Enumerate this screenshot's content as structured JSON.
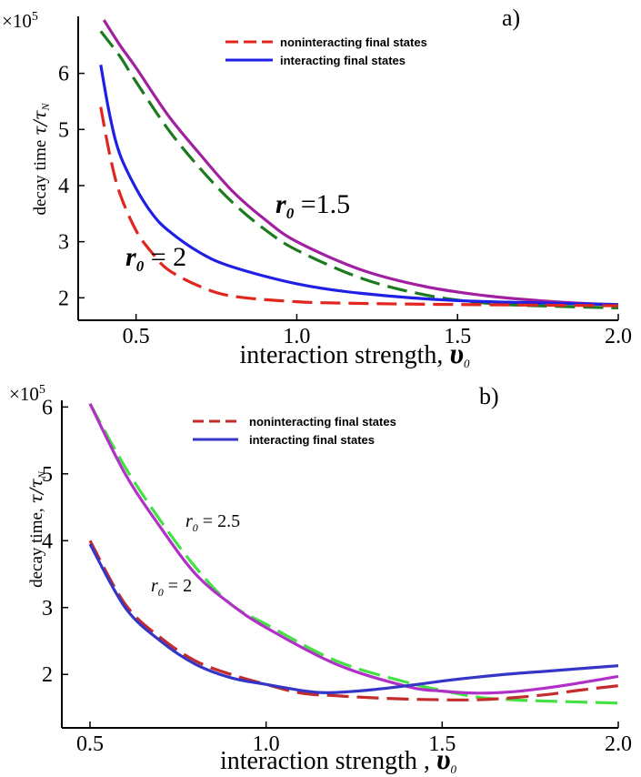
{
  "chart_data": [
    {
      "panel_label": "a)",
      "type": "line",
      "xlabel": "interaction strength, ",
      "xlabel_symbol": "υ",
      "xlabel_sub": "0",
      "ylabel": "decay time ",
      "ylabel_math": "τ/τ",
      "ylabel_sub": "N",
      "y_multiplier": "×10",
      "y_multiplier_exp": "5",
      "xlim": [
        0.32,
        2.0
      ],
      "ylim": [
        1.6,
        6.95
      ],
      "xticks": [
        "0.5",
        "1.0",
        "1.5",
        "2.0"
      ],
      "yticks": [
        "2",
        "3",
        "4",
        "5",
        "6"
      ],
      "legend": {
        "placement": "top-center",
        "entries": [
          {
            "label": "noninteracting final states",
            "color": "#e0261f",
            "dash": "dashed"
          },
          {
            "label": "interacting final states",
            "color": "#1f1fe6",
            "dash": "solid"
          }
        ]
      },
      "annotations": [
        {
          "r": "r",
          "sub": "0",
          "text": " =1.5"
        },
        {
          "r": "r",
          "sub": "0",
          "text": " = 2"
        }
      ],
      "series": [
        {
          "color": "#a020a0",
          "dash": "solid",
          "x": [
            0.4,
            0.45,
            0.5,
            0.6,
            0.7,
            0.8,
            0.9,
            1.0,
            1.2,
            1.4,
            1.6,
            1.8,
            2.0
          ],
          "y": [
            6.95,
            6.5,
            6.1,
            5.25,
            4.55,
            3.9,
            3.4,
            3.0,
            2.5,
            2.2,
            2.03,
            1.93,
            1.87
          ]
        },
        {
          "color": "#1e7a1e",
          "dash": "dashed",
          "x": [
            0.39,
            0.45,
            0.5,
            0.6,
            0.7,
            0.8,
            0.9,
            1.0,
            1.2,
            1.4,
            1.6,
            1.8,
            2.0
          ],
          "y": [
            6.75,
            6.3,
            5.85,
            5.0,
            4.3,
            3.7,
            3.22,
            2.85,
            2.35,
            2.05,
            1.9,
            1.85,
            1.82
          ]
        },
        {
          "color": "#1f1fe6",
          "dash": "solid",
          "x": [
            0.39,
            0.42,
            0.45,
            0.5,
            0.55,
            0.6,
            0.7,
            0.8,
            1.0,
            1.2,
            1.5,
            2.0
          ],
          "y": [
            6.15,
            5.2,
            4.55,
            3.95,
            3.5,
            3.2,
            2.8,
            2.55,
            2.25,
            2.08,
            1.95,
            1.88
          ]
        },
        {
          "color": "#e0261f",
          "dash": "dashed",
          "x": [
            0.39,
            0.42,
            0.45,
            0.5,
            0.55,
            0.6,
            0.7,
            0.8,
            1.0,
            1.2,
            1.5,
            2.0
          ],
          "y": [
            5.4,
            4.5,
            3.85,
            3.2,
            2.8,
            2.5,
            2.2,
            2.03,
            1.93,
            1.9,
            1.88,
            1.86
          ]
        }
      ]
    },
    {
      "panel_label": "b)",
      "type": "line",
      "xlabel": "interaction strength , ",
      "xlabel_symbol": "υ",
      "xlabel_sub": "0",
      "ylabel": "decay time, ",
      "ylabel_math": "τ/τ",
      "ylabel_sub": "N",
      "y_multiplier": "×10",
      "y_multiplier_exp": "5",
      "xlim": [
        0.42,
        2.0
      ],
      "ylim": [
        1.2,
        6.1
      ],
      "xticks": [
        "0.5",
        "1.0",
        "1.5",
        "2.0"
      ],
      "yticks": [
        "2",
        "3",
        "4",
        "5",
        "6"
      ],
      "legend": {
        "placement": "top-center",
        "entries": [
          {
            "label": "noninteracting final states",
            "color": "#c42b2b",
            "dash": "dashed"
          },
          {
            "label": "interacting final states",
            "color": "#3535c8",
            "dash": "solid"
          }
        ]
      },
      "annotations": [
        {
          "r": "r",
          "sub": "0",
          "text": " = 2.5"
        },
        {
          "r": "r",
          "sub": "0",
          "text": " = 2"
        }
      ],
      "series": [
        {
          "color": "#44e044",
          "dash": "dashed",
          "x": [
            0.5,
            0.6,
            0.7,
            0.8,
            0.9,
            1.0,
            1.2,
            1.4,
            1.5,
            1.6,
            1.7,
            1.8,
            2.0
          ],
          "y": [
            6.05,
            5.1,
            4.3,
            3.6,
            3.05,
            2.75,
            2.2,
            1.88,
            1.76,
            1.66,
            1.62,
            1.6,
            1.57
          ]
        },
        {
          "color": "#b030c8",
          "dash": "solid",
          "x": [
            0.5,
            0.6,
            0.7,
            0.8,
            0.9,
            1.0,
            1.2,
            1.4,
            1.5,
            1.6,
            1.7,
            1.8,
            1.9,
            2.0
          ],
          "y": [
            6.05,
            5.0,
            4.2,
            3.5,
            3.05,
            2.7,
            2.15,
            1.82,
            1.75,
            1.72,
            1.74,
            1.8,
            1.88,
            1.97
          ]
        },
        {
          "color": "#c42b2b",
          "dash": "dashed",
          "x": [
            0.5,
            0.6,
            0.7,
            0.8,
            0.9,
            1.0,
            1.1,
            1.2,
            1.3,
            1.4,
            1.5,
            1.6,
            1.7,
            1.8,
            1.9,
            2.0
          ],
          "y": [
            4.0,
            3.05,
            2.55,
            2.2,
            2.0,
            1.85,
            1.72,
            1.68,
            1.65,
            1.63,
            1.62,
            1.62,
            1.65,
            1.7,
            1.77,
            1.83
          ]
        },
        {
          "color": "#3535c8",
          "dash": "solid",
          "x": [
            0.5,
            0.6,
            0.7,
            0.8,
            0.9,
            1.0,
            1.1,
            1.15,
            1.2,
            1.3,
            1.4,
            1.5,
            1.6,
            1.7,
            1.8,
            1.9,
            2.0
          ],
          "y": [
            3.95,
            3.0,
            2.5,
            2.15,
            1.95,
            1.85,
            1.76,
            1.73,
            1.73,
            1.77,
            1.83,
            1.9,
            1.96,
            2.01,
            2.05,
            2.09,
            2.13
          ]
        }
      ]
    }
  ]
}
